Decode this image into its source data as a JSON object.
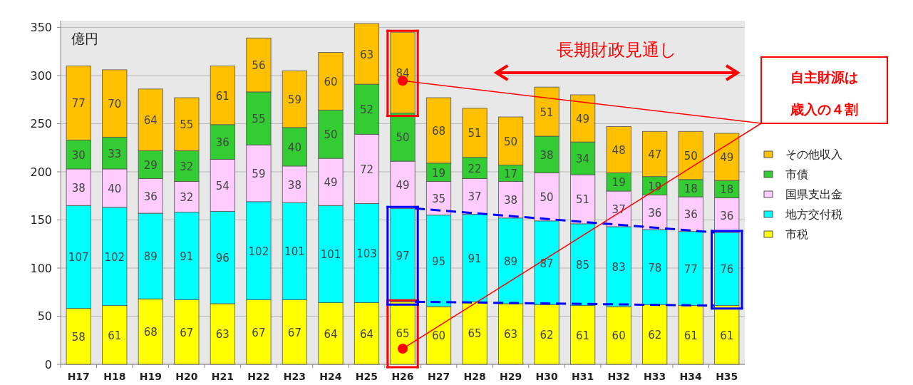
{
  "chart_data": {
    "type": "bar",
    "stacked": true,
    "ylabel": "億円",
    "categories": [
      "H17",
      "H18",
      "H19",
      "H20",
      "H21",
      "H22",
      "H23",
      "H24",
      "H25",
      "H26",
      "H27",
      "H28",
      "H29",
      "H30",
      "H31",
      "H32",
      "H33",
      "H34",
      "H35"
    ],
    "series": [
      {
        "name": "市税",
        "color": "#ffff00",
        "values": [
          58,
          61,
          68,
          67,
          63,
          67,
          67,
          64,
          64,
          65,
          60,
          65,
          63,
          62,
          61,
          60,
          62,
          61,
          61
        ]
      },
      {
        "name": "地方交付税",
        "color": "#00ffff",
        "values": [
          107,
          102,
          89,
          91,
          96,
          102,
          101,
          101,
          103,
          97,
          95,
          91,
          89,
          87,
          85,
          83,
          78,
          77,
          76
        ]
      },
      {
        "name": "国県支出金",
        "color": "#ffccff",
        "values": [
          38,
          40,
          36,
          32,
          54,
          59,
          38,
          49,
          72,
          49,
          35,
          37,
          38,
          50,
          51,
          37,
          36,
          36,
          36
        ]
      },
      {
        "name": "市債",
        "color": "#33cc33",
        "values": [
          30,
          33,
          29,
          32,
          36,
          55,
          40,
          50,
          52,
          50,
          19,
          22,
          17,
          38,
          34,
          19,
          19,
          18,
          18
        ]
      },
      {
        "name": "その他収入",
        "color": "#ffc000",
        "values": [
          77,
          70,
          64,
          55,
          61,
          56,
          59,
          60,
          63,
          84,
          68,
          51,
          50,
          51,
          49,
          48,
          47,
          50,
          49
        ]
      }
    ],
    "ylim": [
      0,
      357
    ],
    "yticks": [
      0,
      50,
      100,
      150,
      200,
      250,
      300,
      350
    ],
    "grid": "y",
    "data_labels": true,
    "legend": "right",
    "annotations": [
      "長期財政見通し",
      "自主財源は",
      "歳入の４割"
    ]
  }
}
